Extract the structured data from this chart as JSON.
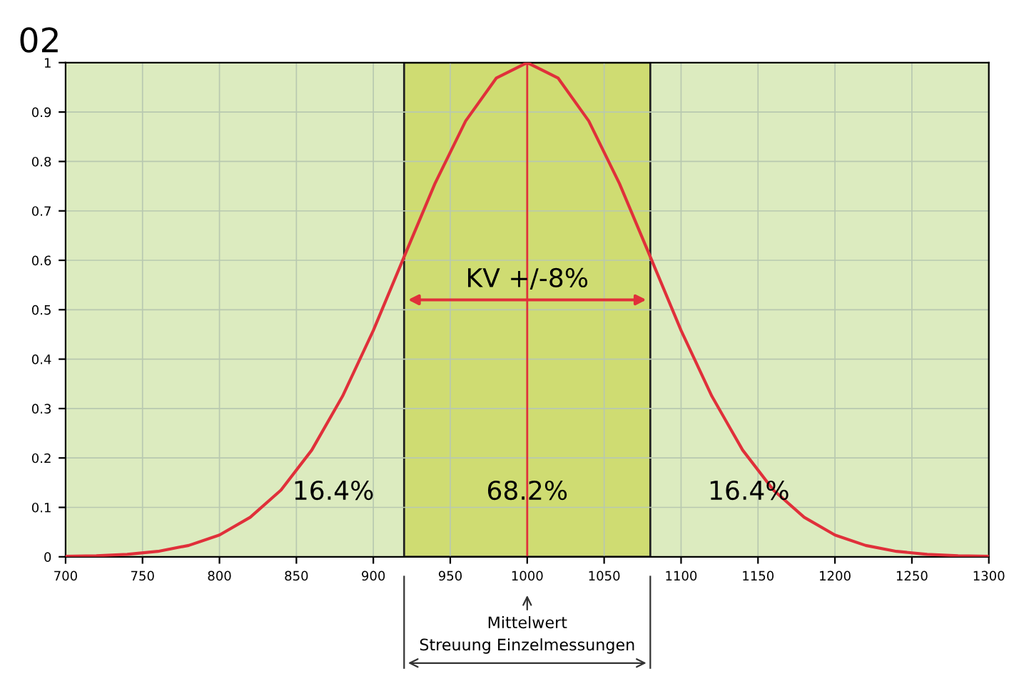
{
  "chart_data": {
    "type": "line",
    "title": "02",
    "x": [
      700,
      720,
      740,
      760,
      780,
      800,
      820,
      840,
      860,
      880,
      900,
      920,
      940,
      960,
      980,
      1000,
      1020,
      1040,
      1060,
      1080,
      1100,
      1120,
      1140,
      1160,
      1180,
      1200,
      1220,
      1240,
      1260,
      1280,
      1300
    ],
    "series": [
      {
        "color": "#e0303a",
        "values": [
          0.001,
          0.002,
          0.005,
          0.011,
          0.023,
          0.044,
          0.08,
          0.135,
          0.216,
          0.325,
          0.458,
          0.607,
          0.755,
          0.882,
          0.969,
          1,
          0.969,
          0.882,
          0.755,
          0.607,
          0.458,
          0.325,
          0.216,
          0.135,
          0.08,
          0.044,
          0.023,
          0.011,
          0.005,
          0.002,
          0.001
        ]
      }
    ],
    "xlim": [
      700,
      1300
    ],
    "xticks": [
      700,
      750,
      800,
      850,
      900,
      950,
      1000,
      1050,
      1100,
      1150,
      1200,
      1250,
      1300
    ],
    "ylim": [
      0,
      1
    ],
    "yticks": [
      0,
      0.1,
      0.2,
      0.3,
      0.4,
      0.5,
      0.6,
      0.7,
      0.8,
      0.9,
      1
    ],
    "grid": true,
    "marker": "none",
    "line_style": "solid",
    "bands": [
      {
        "axis": "x",
        "from": 920,
        "to": 1080,
        "color": "#cfdc72"
      }
    ],
    "ref_lines": [
      {
        "axis": "x",
        "value": 1000,
        "color": "#e0303a",
        "line_style": "solid"
      }
    ],
    "annotations": [
      {
        "text": "KV +/-8%",
        "x": 1000,
        "y": 0.52
      },
      "16.4%",
      "68.2%",
      "16.4%",
      "Mittelwert",
      "Streuung Einzelmessungen"
    ]
  }
}
